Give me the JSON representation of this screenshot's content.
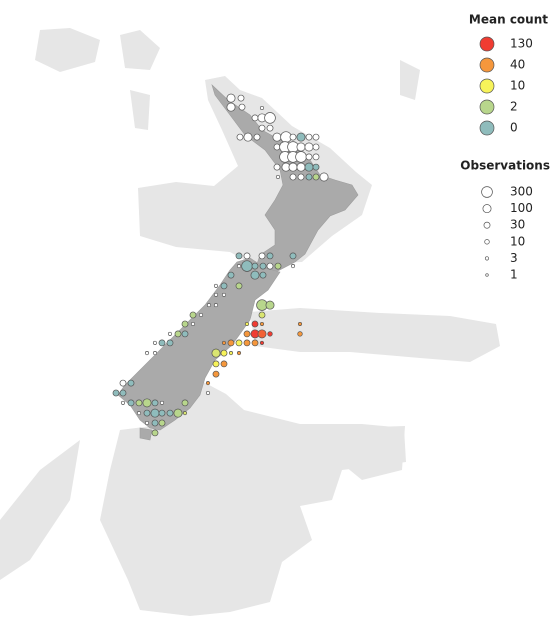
{
  "legends": [
    {
      "title": "Mean count",
      "levels": [
        130,
        40,
        10,
        2,
        0
      ],
      "colors": [
        "#f03c32",
        "#f5973c",
        "#f7f35a",
        "#b8d68c",
        "#8fbcbc"
      ]
    },
    {
      "title": "Observations",
      "levels": [
        300,
        100,
        30,
        10,
        3,
        1
      ]
    }
  ],
  "missing_color": "#ffffff",
  "points": [
    [
      173.24,
      -35.27,
      null,
      100
    ],
    [
      173.64,
      -35.27,
      null,
      30
    ],
    [
      173.24,
      -35.57,
      null,
      100
    ],
    [
      173.68,
      -35.57,
      null,
      30
    ],
    [
      174.48,
      -35.6,
      null,
      3
    ],
    [
      174.2,
      -35.93,
      null,
      30
    ],
    [
      174.48,
      -35.93,
      null,
      100
    ],
    [
      174.8,
      -35.93,
      null,
      300
    ],
    [
      174.48,
      -36.27,
      null,
      30
    ],
    [
      174.8,
      -36.27,
      null,
      30
    ],
    [
      173.6,
      -36.57,
      null,
      30
    ],
    [
      173.92,
      -36.57,
      null,
      100
    ],
    [
      174.28,
      -36.57,
      null,
      30
    ],
    [
      175.08,
      -36.57,
      null,
      100
    ],
    [
      175.44,
      -36.57,
      null,
      300
    ],
    [
      175.72,
      -36.57,
      null,
      30
    ],
    [
      176.04,
      -36.57,
      0,
      100
    ],
    [
      176.36,
      -36.57,
      null,
      30
    ],
    [
      176.64,
      -36.57,
      null,
      30
    ],
    [
      175.08,
      -36.9,
      null,
      30
    ],
    [
      175.4,
      -36.9,
      null,
      300
    ],
    [
      175.72,
      -36.9,
      null,
      300
    ],
    [
      176.04,
      -36.9,
      null,
      100
    ],
    [
      176.36,
      -36.9,
      null,
      100
    ],
    [
      176.64,
      -36.9,
      null,
      30
    ],
    [
      175.4,
      -37.23,
      null,
      300
    ],
    [
      175.72,
      -37.23,
      null,
      300
    ],
    [
      176.04,
      -37.23,
      null,
      300
    ],
    [
      176.36,
      -37.23,
      null,
      30
    ],
    [
      176.64,
      -37.23,
      null,
      30
    ],
    [
      175.08,
      -37.57,
      null,
      30
    ],
    [
      175.44,
      -37.57,
      null,
      100
    ],
    [
      175.72,
      -37.57,
      null,
      100
    ],
    [
      176.04,
      -37.57,
      null,
      100
    ],
    [
      176.36,
      -37.57,
      0,
      100
    ],
    [
      176.64,
      -37.57,
      0,
      30
    ],
    [
      175.12,
      -37.9,
      null,
      3
    ],
    [
      175.72,
      -37.9,
      null,
      30
    ],
    [
      176.04,
      -37.9,
      null,
      30
    ],
    [
      176.36,
      -37.9,
      0,
      30
    ],
    [
      176.64,
      -37.9,
      2,
      30
    ],
    [
      176.96,
      -37.9,
      null,
      100
    ],
    [
      173.56,
      -40.53,
      0,
      30
    ],
    [
      173.88,
      -40.53,
      null,
      30
    ],
    [
      174.48,
      -40.53,
      null,
      30
    ],
    [
      174.8,
      -40.53,
      0,
      30
    ],
    [
      175.72,
      -40.53,
      0,
      30
    ],
    [
      173.56,
      -40.87,
      null,
      3
    ],
    [
      173.88,
      -40.87,
      0,
      300
    ],
    [
      174.2,
      -40.87,
      0,
      30
    ],
    [
      174.52,
      -40.87,
      0,
      30
    ],
    [
      174.8,
      -40.87,
      null,
      30
    ],
    [
      175.12,
      -40.87,
      2,
      30
    ],
    [
      175.72,
      -40.87,
      null,
      3
    ],
    [
      173.24,
      -41.17,
      0,
      30
    ],
    [
      174.2,
      -41.17,
      0,
      100
    ],
    [
      174.52,
      -41.17,
      0,
      30
    ],
    [
      172.64,
      -41.53,
      null,
      3
    ],
    [
      172.96,
      -41.53,
      0,
      30
    ],
    [
      173.56,
      -41.53,
      2,
      30
    ],
    [
      172.64,
      -41.83,
      null,
      3
    ],
    [
      172.96,
      -41.83,
      null,
      3
    ],
    [
      172.36,
      -42.17,
      null,
      3
    ],
    [
      172.64,
      -42.17,
      null,
      3
    ],
    [
      174.48,
      -42.17,
      2,
      300
    ],
    [
      174.8,
      -42.17,
      2,
      100
    ],
    [
      171.72,
      -42.5,
      2,
      30
    ],
    [
      172.04,
      -42.5,
      null,
      3
    ],
    [
      174.48,
      -42.5,
      5,
      30
    ],
    [
      171.4,
      -42.8,
      2,
      30
    ],
    [
      171.72,
      -42.8,
      null,
      3
    ],
    [
      173.88,
      -42.8,
      10,
      3
    ],
    [
      174.2,
      -42.8,
      130,
      30
    ],
    [
      174.48,
      -42.8,
      40,
      3
    ],
    [
      176.0,
      -42.8,
      40,
      3
    ],
    [
      170.8,
      -43.13,
      null,
      3
    ],
    [
      171.12,
      -43.13,
      2,
      30
    ],
    [
      171.4,
      -43.13,
      0,
      30
    ],
    [
      173.88,
      -43.13,
      40,
      30
    ],
    [
      174.2,
      -43.13,
      130,
      100
    ],
    [
      174.48,
      -43.13,
      80,
      100
    ],
    [
      174.8,
      -43.13,
      130,
      10
    ],
    [
      176.0,
      -43.13,
      40,
      10
    ],
    [
      170.2,
      -43.43,
      null,
      3
    ],
    [
      170.48,
      -43.43,
      0,
      30
    ],
    [
      170.8,
      -43.43,
      0,
      30
    ],
    [
      172.96,
      -43.43,
      40,
      3
    ],
    [
      173.24,
      -43.43,
      40,
      30
    ],
    [
      173.56,
      -43.43,
      10,
      30
    ],
    [
      173.88,
      -43.43,
      40,
      30
    ],
    [
      174.2,
      -43.43,
      40,
      30
    ],
    [
      174.48,
      -43.43,
      130,
      3
    ],
    [
      169.88,
      -43.77,
      null,
      3
    ],
    [
      170.2,
      -43.77,
      null,
      3
    ],
    [
      172.64,
      -43.77,
      5,
      100
    ],
    [
      172.96,
      -43.77,
      10,
      30
    ],
    [
      173.24,
      -43.77,
      10,
      3
    ],
    [
      173.56,
      -43.77,
      40,
      3
    ],
    [
      172.64,
      -44.13,
      10,
      30
    ],
    [
      172.96,
      -44.13,
      40,
      30
    ],
    [
      172.64,
      -44.47,
      40,
      30
    ],
    [
      168.92,
      -44.77,
      null,
      30
    ],
    [
      169.24,
      -44.77,
      0,
      30
    ],
    [
      172.32,
      -44.77,
      40,
      3
    ],
    [
      168.64,
      -45.1,
      0,
      30
    ],
    [
      168.92,
      -45.1,
      0,
      30
    ],
    [
      172.32,
      -45.1,
      null,
      3
    ],
    [
      168.92,
      -45.43,
      null,
      3
    ],
    [
      169.24,
      -45.43,
      0,
      30
    ],
    [
      169.56,
      -45.43,
      2,
      30
    ],
    [
      169.88,
      -45.43,
      2,
      100
    ],
    [
      170.2,
      -45.43,
      0,
      30
    ],
    [
      170.48,
      -45.43,
      null,
      3
    ],
    [
      171.4,
      -45.43,
      2,
      30
    ],
    [
      169.56,
      -45.77,
      null,
      3
    ],
    [
      169.88,
      -45.77,
      0,
      30
    ],
    [
      170.2,
      -45.77,
      0,
      100
    ],
    [
      170.48,
      -45.77,
      0,
      30
    ],
    [
      170.8,
      -45.77,
      0,
      30
    ],
    [
      171.12,
      -45.77,
      2,
      100
    ],
    [
      171.4,
      -45.77,
      5,
      3
    ],
    [
      169.88,
      -46.1,
      null,
      3
    ],
    [
      170.2,
      -46.1,
      0,
      30
    ],
    [
      170.48,
      -46.1,
      2,
      30
    ],
    [
      170.2,
      -46.43,
      2,
      30
    ]
  ]
}
